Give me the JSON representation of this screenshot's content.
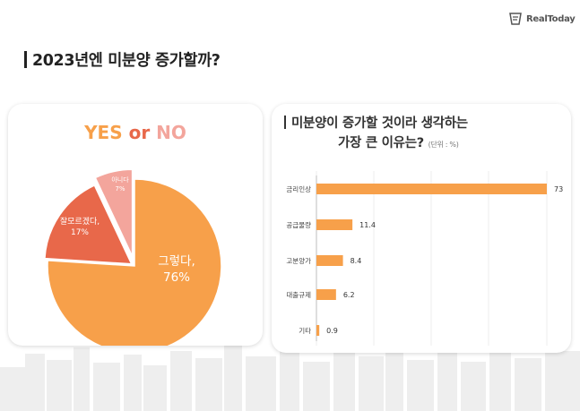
{
  "brand": {
    "name": "RealToday"
  },
  "heading": {
    "title": "2023년엔 미분양 증가할까?"
  },
  "colors": {
    "orange": "#f7a04a",
    "red": "#e8684a",
    "pink": "#f3a59c",
    "bar": "#f7a04a",
    "grid": "#ececec"
  },
  "chart_data": [
    {
      "type": "pie",
      "title": {
        "yes": "YES",
        "or": " or ",
        "no": "NO"
      },
      "slices": [
        {
          "label": "그렇다,",
          "pct_label": "76%",
          "value": 76,
          "color": "#f7a04a"
        },
        {
          "label": "잘모르겠다,",
          "pct_label": "17%",
          "value": 17,
          "color": "#e8684a"
        },
        {
          "label": "아니다",
          "pct_label": "7%",
          "value": 7,
          "color": "#f3a59c"
        }
      ]
    },
    {
      "type": "bar",
      "orientation": "horizontal",
      "title_line1": "미분양이 증가할 것이라 생각하는",
      "title_line2": "가장 큰 이유는?",
      "unit": "(단위 : %)",
      "categories": [
        "금리인상",
        "공급물량",
        "고분양가",
        "대출규제",
        "기타"
      ],
      "values": [
        73,
        11.4,
        8.4,
        6.2,
        0.9
      ],
      "value_labels": [
        "73",
        "11.4",
        "8.4",
        "6.2",
        "0.9"
      ],
      "xlim": [
        0,
        73
      ],
      "grid": true
    }
  ]
}
